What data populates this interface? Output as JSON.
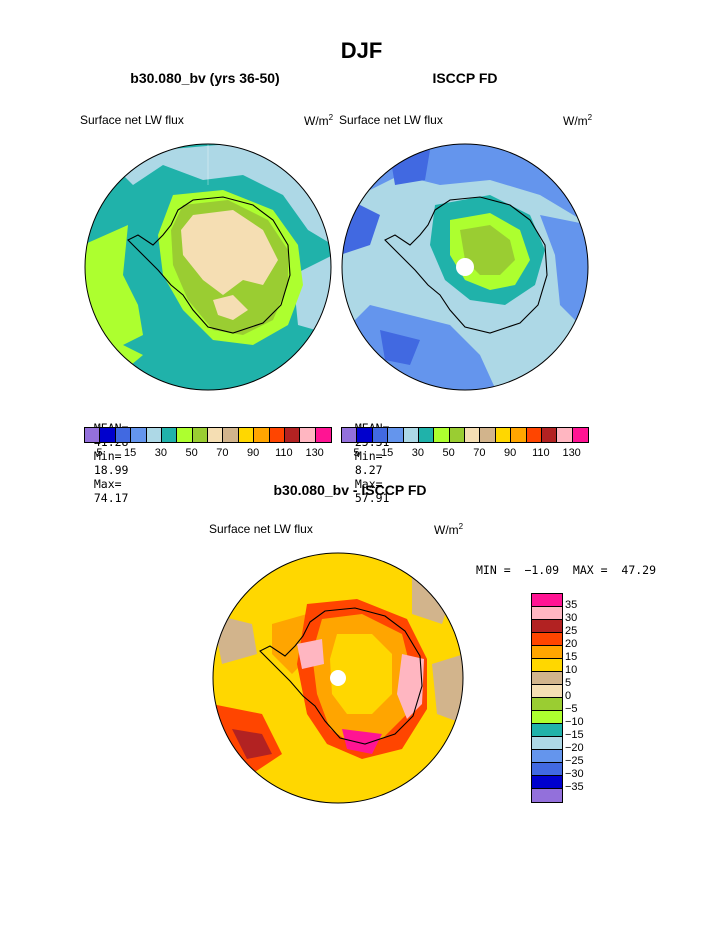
{
  "page_title": "DJF",
  "panels": [
    {
      "title": "b30.080_bv (yrs 36-50)",
      "left_label": "Surface net LW flux",
      "units": "W/m",
      "units_sup": "2",
      "stats": {
        "mean_label": "MEAN=",
        "mean": "41.28",
        "min_label": "Min=",
        "min": "18.99",
        "max_label": "Max=",
        "max": "74.17"
      }
    },
    {
      "title": "ISCCP FD",
      "left_label": "Surface net LW flux",
      "units": "W/m",
      "units_sup": "2",
      "stats": {
        "mean_label": "MEAN=",
        "mean": "25.31",
        "min_label": "Min=",
        "min": "8.27",
        "max_label": "Max=",
        "max": "57.91"
      }
    }
  ],
  "diff_panel": {
    "title": "b30.080_bv - ISCCP FD",
    "left_label": "Surface net LW flux",
    "units": "W/m",
    "units_sup": "2",
    "minmax": "MIN =  −1.09  MAX =  47.29"
  },
  "colorbar_top": {
    "colors": [
      "#9370db",
      "#0000cd",
      "#4169e1",
      "#6495ed",
      "#add8e6",
      "#20b2aa",
      "#adff2f",
      "#9acd32",
      "#f5deb3",
      "#d2b48c",
      "#ffd700",
      "#ffa500",
      "#ff4500",
      "#b22222",
      "#ffb6c1",
      "#ff1493"
    ],
    "tick_labels": [
      "5",
      "15",
      "30",
      "50",
      "70",
      "90",
      "110",
      "130"
    ]
  },
  "colorbar_diff": {
    "colors": [
      "#ff1493",
      "#ffb6c1",
      "#b22222",
      "#ff4500",
      "#ffa500",
      "#ffd700",
      "#d2b48c",
      "#f5deb3",
      "#9acd32",
      "#adff2f",
      "#20b2aa",
      "#add8e6",
      "#6495ed",
      "#4169e1",
      "#0000cd",
      "#9370db"
    ],
    "tick_labels": [
      "35",
      "30",
      "25",
      "20",
      "15",
      "10",
      "5",
      "0",
      "−5",
      "−10",
      "−15",
      "−20",
      "−25",
      "−30",
      "−35"
    ]
  },
  "chart_data": [
    {
      "type": "heatmap",
      "projection": "south-polar-stereographic",
      "title": "b30.080_bv (yrs 36-50)",
      "variable": "Surface net LW flux",
      "units": "W/m2",
      "mean": 41.28,
      "min": 18.99,
      "max": 74.17
    },
    {
      "type": "heatmap",
      "projection": "south-polar-stereographic",
      "title": "ISCCP FD",
      "variable": "Surface net LW flux",
      "units": "W/m2",
      "mean": 25.31,
      "min": 8.27,
      "max": 57.91
    },
    {
      "type": "heatmap",
      "projection": "south-polar-stereographic",
      "title": "b30.080_bv - ISCCP FD",
      "variable": "Surface net LW flux",
      "units": "W/m2",
      "min": -1.09,
      "max": 47.29
    }
  ]
}
